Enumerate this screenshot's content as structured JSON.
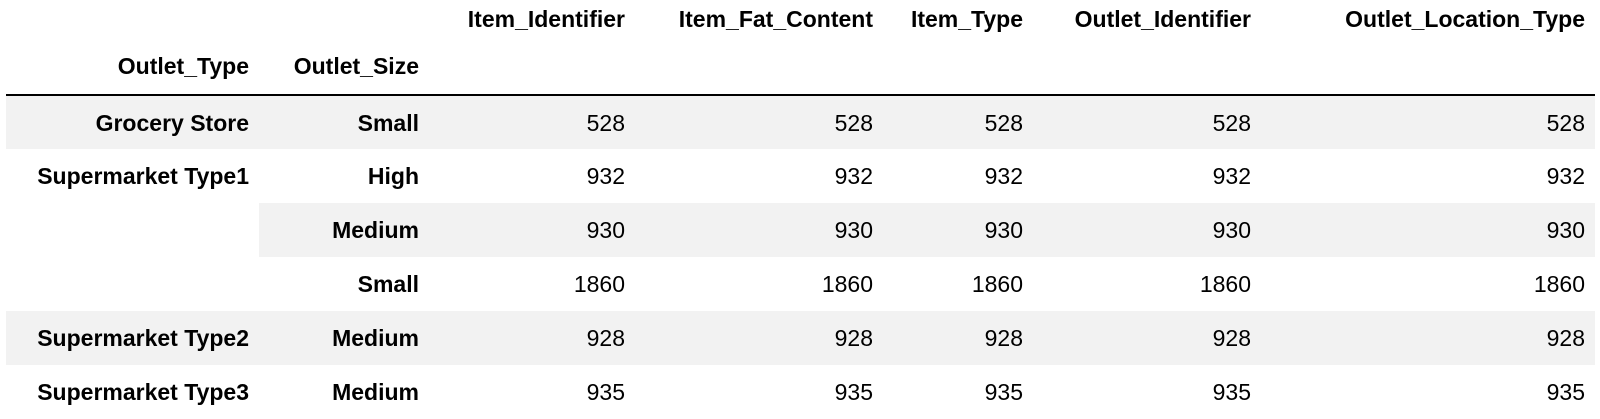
{
  "columns": [
    "Item_Identifier",
    "Item_Fat_Content",
    "Item_Type",
    "Outlet_Identifier",
    "Outlet_Location_Type"
  ],
  "index_names": [
    "Outlet_Type",
    "Outlet_Size"
  ],
  "rows": [
    {
      "outlet_type": "Grocery Store",
      "outlet_size": "Small",
      "values": [
        "528",
        "528",
        "528",
        "528",
        "528"
      ]
    },
    {
      "outlet_type": "Supermarket Type1",
      "outlet_size": "High",
      "values": [
        "932",
        "932",
        "932",
        "932",
        "932"
      ]
    },
    {
      "outlet_type": "",
      "outlet_size": "Medium",
      "values": [
        "930",
        "930",
        "930",
        "930",
        "930"
      ]
    },
    {
      "outlet_type": "",
      "outlet_size": "Small",
      "values": [
        "1860",
        "1860",
        "1860",
        "1860",
        "1860"
      ]
    },
    {
      "outlet_type": "Supermarket Type2",
      "outlet_size": "Medium",
      "values": [
        "928",
        "928",
        "928",
        "928",
        "928"
      ]
    },
    {
      "outlet_type": "Supermarket Type3",
      "outlet_size": "Medium",
      "values": [
        "935",
        "935",
        "935",
        "935",
        "935"
      ]
    }
  ]
}
